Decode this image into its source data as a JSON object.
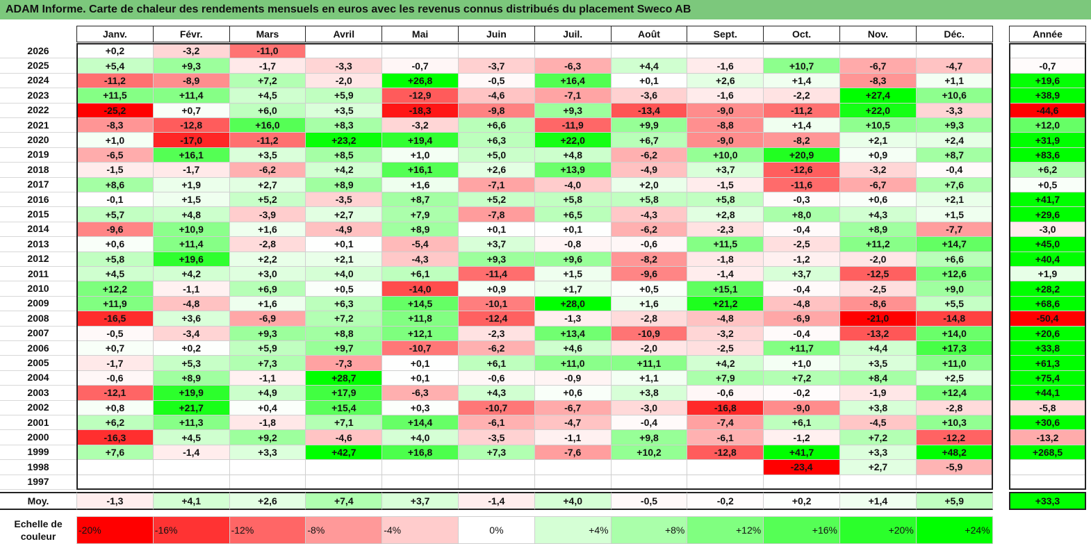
{
  "title": "ADAM Informe. Carte de chaleur des rendements mensuels en euros avec les revenus connus distribués du placement Sweco AB",
  "chart_data": {
    "type": "heatmap",
    "title": "ADAM Informe. Carte de chaleur des rendements mensuels en euros avec les revenus connus distribués du placement Sweco AB",
    "months": [
      "Janv.",
      "Févr.",
      "Mars",
      "Avril",
      "Mai",
      "Juin",
      "Juil.",
      "Août",
      "Sept.",
      "Oct.",
      "Nov.",
      "Déc."
    ],
    "year_header": "Année",
    "rows": [
      {
        "year": "2026",
        "values": [
          "+0,2",
          "-3,2",
          "-11,0",
          "",
          "",
          "",
          "",
          "",
          "",
          "",
          "",
          ""
        ],
        "total": ""
      },
      {
        "year": "2025",
        "values": [
          "+5,4",
          "+9,3",
          "-1,7",
          "-3,3",
          "-0,7",
          "-3,7",
          "-6,3",
          "+4,4",
          "-1,6",
          "+10,7",
          "-6,7",
          "-4,7"
        ],
        "total": "-0,7"
      },
      {
        "year": "2024",
        "values": [
          "-11,2",
          "-8,9",
          "+7,2",
          "-2,0",
          "+26,8",
          "-0,5",
          "+16,4",
          "+0,1",
          "+2,6",
          "+1,4",
          "-8,3",
          "+1,1"
        ],
        "total": "+19,6"
      },
      {
        "year": "2023",
        "values": [
          "+11,5",
          "+11,4",
          "+4,5",
          "+5,9",
          "-12,9",
          "-4,6",
          "-7,1",
          "-3,6",
          "-1,6",
          "-2,2",
          "+27,4",
          "+10,6"
        ],
        "total": "+38,9"
      },
      {
        "year": "2022",
        "values": [
          "-25,2",
          "+0,7",
          "+6,0",
          "+3,5",
          "-18,3",
          "-9,8",
          "+9,3",
          "-13,4",
          "-9,0",
          "-11,2",
          "+22,0",
          "-3,3"
        ],
        "total": "-44,6"
      },
      {
        "year": "2021",
        "values": [
          "-8,3",
          "-12,8",
          "+16,0",
          "+8,3",
          "-3,2",
          "+6,6",
          "-11,9",
          "+9,9",
          "-8,8",
          "+1,4",
          "+10,5",
          "+9,3"
        ],
        "total": "+12,0"
      },
      {
        "year": "2020",
        "values": [
          "+1,0",
          "-17,0",
          "-11,2",
          "+23,2",
          "+19,4",
          "+6,3",
          "+22,0",
          "+6,7",
          "-9,0",
          "-8,2",
          "+2,1",
          "+2,4"
        ],
        "total": "+31,9"
      },
      {
        "year": "2019",
        "values": [
          "-6,5",
          "+16,1",
          "+3,5",
          "+8,5",
          "+1,0",
          "+5,0",
          "+4,8",
          "-6,2",
          "+10,0",
          "+20,9",
          "+0,9",
          "+8,7"
        ],
        "total": "+83,6"
      },
      {
        "year": "2018",
        "values": [
          "-1,5",
          "-1,7",
          "-6,2",
          "+4,2",
          "+16,1",
          "+2,6",
          "+13,9",
          "-4,9",
          "+3,7",
          "-12,6",
          "-3,2",
          "-0,4"
        ],
        "total": "+6,2"
      },
      {
        "year": "2017",
        "values": [
          "+8,6",
          "+1,9",
          "+2,7",
          "+8,9",
          "+1,6",
          "-7,1",
          "-4,0",
          "+2,0",
          "-1,5",
          "-11,6",
          "-6,7",
          "+7,6"
        ],
        "total": "+0,5"
      },
      {
        "year": "2016",
        "values": [
          "-0,1",
          "+1,5",
          "+5,2",
          "-3,5",
          "+8,7",
          "+5,2",
          "+5,8",
          "+5,8",
          "+5,8",
          "-0,3",
          "+0,6",
          "+2,1"
        ],
        "total": "+41,7"
      },
      {
        "year": "2015",
        "values": [
          "+5,7",
          "+4,8",
          "-3,9",
          "+2,7",
          "+7,9",
          "-7,8",
          "+6,5",
          "-4,3",
          "+2,8",
          "+8,0",
          "+4,3",
          "+1,5"
        ],
        "total": "+29,6"
      },
      {
        "year": "2014",
        "values": [
          "-9,6",
          "+10,9",
          "+1,6",
          "-4,9",
          "+8,9",
          "+0,1",
          "+0,1",
          "-6,2",
          "-2,3",
          "-0,4",
          "+8,9",
          "-7,7"
        ],
        "total": "-3,0"
      },
      {
        "year": "2013",
        "values": [
          "+0,6",
          "+11,4",
          "-2,8",
          "+0,1",
          "-5,4",
          "+3,7",
          "-0,8",
          "-0,6",
          "+11,5",
          "-2,5",
          "+11,2",
          "+14,7"
        ],
        "total": "+45,0"
      },
      {
        "year": "2012",
        "values": [
          "+5,8",
          "+19,6",
          "+2,2",
          "+2,1",
          "-4,3",
          "+9,3",
          "+9,6",
          "-8,2",
          "-1,8",
          "-1,2",
          "-2,0",
          "+6,6"
        ],
        "total": "+40,4"
      },
      {
        "year": "2011",
        "values": [
          "+4,5",
          "+4,2",
          "+3,0",
          "+4,0",
          "+6,1",
          "-11,4",
          "+1,5",
          "-9,6",
          "-1,4",
          "+3,7",
          "-12,5",
          "+12,6"
        ],
        "total": "+1,9"
      },
      {
        "year": "2010",
        "values": [
          "+12,2",
          "-1,1",
          "+6,9",
          "+0,5",
          "-14,0",
          "+0,9",
          "+1,7",
          "+0,5",
          "+15,1",
          "-0,4",
          "-2,5",
          "+9,0"
        ],
        "total": "+28,2"
      },
      {
        "year": "2009",
        "values": [
          "+11,9",
          "-4,8",
          "+1,6",
          "+6,3",
          "+14,5",
          "-10,1",
          "+28,0",
          "+1,6",
          "+21,2",
          "-4,8",
          "-8,6",
          "+5,5"
        ],
        "total": "+68,6"
      },
      {
        "year": "2008",
        "values": [
          "-16,5",
          "+3,6",
          "-6,9",
          "+7,2",
          "+11,8",
          "-12,4",
          "-1,3",
          "-2,8",
          "-4,8",
          "-6,9",
          "-21,0",
          "-14,8"
        ],
        "total": "-50,4"
      },
      {
        "year": "2007",
        "values": [
          "-0,5",
          "-3,4",
          "+9,3",
          "+8,8",
          "+12,1",
          "-2,3",
          "+13,4",
          "-10,9",
          "-3,2",
          "-0,4",
          "-13,2",
          "+14,0"
        ],
        "total": "+20,6"
      },
      {
        "year": "2006",
        "values": [
          "+0,7",
          "+0,2",
          "+5,9",
          "+9,7",
          "-10,7",
          "-6,2",
          "+4,6",
          "-2,0",
          "-2,5",
          "+11,7",
          "+4,4",
          "+17,3"
        ],
        "total": "+33,8"
      },
      {
        "year": "2005",
        "values": [
          "-1,7",
          "+5,3",
          "+7,3",
          "-7,3",
          "+0,1",
          "+6,1",
          "+11,0",
          "+11,1",
          "+4,2",
          "+1,0",
          "+3,5",
          "+11,0"
        ],
        "total": "+61,3"
      },
      {
        "year": "2004",
        "values": [
          "-0,6",
          "+8,9",
          "-1,1",
          "+28,7",
          "+0,1",
          "-0,6",
          "-0,9",
          "+1,1",
          "+7,9",
          "+7,2",
          "+8,4",
          "+2,5"
        ],
        "total": "+75,4"
      },
      {
        "year": "2003",
        "values": [
          "-12,1",
          "+19,9",
          "+4,9",
          "+17,9",
          "-6,3",
          "+4,3",
          "+0,6",
          "+3,8",
          "-0,6",
          "-0,2",
          "-1,9",
          "+12,4"
        ],
        "total": "+44,1"
      },
      {
        "year": "2002",
        "values": [
          "+0,8",
          "+21,7",
          "+0,4",
          "+15,4",
          "+0,3",
          "-10,7",
          "-6,7",
          "-3,0",
          "-16,8",
          "-9,0",
          "+3,8",
          "-2,8"
        ],
        "total": "-5,8"
      },
      {
        "year": "2001",
        "values": [
          "+6,2",
          "+11,3",
          "-1,8",
          "+7,1",
          "+14,4",
          "-6,1",
          "-4,7",
          "-0,4",
          "-7,4",
          "+6,1",
          "-4,5",
          "+10,3"
        ],
        "total": "+30,6"
      },
      {
        "year": "2000",
        "values": [
          "-16,3",
          "+4,5",
          "+9,2",
          "-4,6",
          "+4,0",
          "-3,5",
          "-1,1",
          "+9,8",
          "-6,1",
          "-1,2",
          "+7,2",
          "-12,2"
        ],
        "total": "-13,2"
      },
      {
        "year": "1999",
        "values": [
          "+7,6",
          "-1,4",
          "+3,3",
          "+42,7",
          "+16,8",
          "+7,3",
          "-7,6",
          "+10,2",
          "-12,8",
          "+41,7",
          "+3,3",
          "+48,2"
        ],
        "total": "+268,5"
      },
      {
        "year": "1998",
        "values": [
          "",
          "",
          "",
          "",
          "",
          "",
          "",
          "",
          "",
          "-23,4",
          "+2,7",
          "-5,9"
        ],
        "total": ""
      },
      {
        "year": "1997",
        "values": [
          "",
          "",
          "",
          "",
          "",
          "",
          "",
          "",
          "",
          "",
          "",
          ""
        ],
        "total": ""
      }
    ],
    "average": {
      "label": "Moy.",
      "values": [
        "-1,3",
        "+4,1",
        "+2,6",
        "+7,4",
        "+3,7",
        "-1,4",
        "+4,0",
        "-0,5",
        "-0,2",
        "+0,2",
        "+1,4",
        "+5,9"
      ],
      "total": "+33,3"
    },
    "scale": {
      "label": "Echelle de couleur",
      "steps": [
        "-20%",
        "-16%",
        "-12%",
        "-8%",
        "-4%",
        "0%",
        "+4%",
        "+8%",
        "+12%",
        "+16%",
        "+20%",
        "+24%"
      ]
    }
  }
}
